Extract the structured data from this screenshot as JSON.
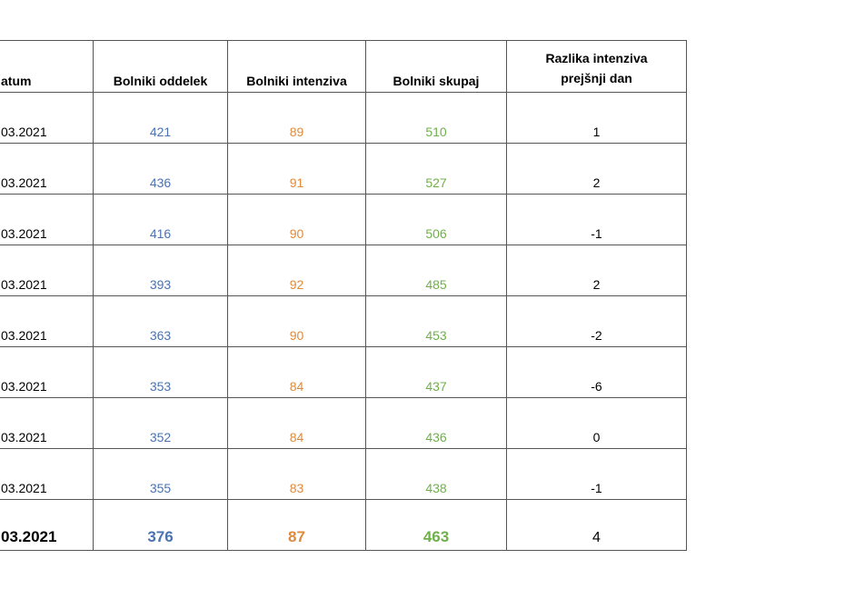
{
  "table": {
    "header": [
      "atum",
      "Bolniki oddelek",
      "Bolniki intenziva",
      "Bolniki skupaj",
      "Razlika intenziva prejšnji dan"
    ],
    "rows": [
      [
        "03.2021",
        421,
        89,
        510,
        1
      ],
      [
        "03.2021",
        436,
        91,
        527,
        2
      ],
      [
        "03.2021",
        416,
        90,
        506,
        -1
      ],
      [
        "03.2021",
        393,
        92,
        485,
        2
      ],
      [
        "03.2021",
        363,
        90,
        453,
        -2
      ],
      [
        "03.2021",
        353,
        84,
        437,
        -6
      ],
      [
        "03.2021",
        352,
        84,
        436,
        0
      ],
      [
        "03.2021",
        355,
        83,
        438,
        -1
      ],
      [
        "03.2021",
        376,
        87,
        463,
        4
      ]
    ]
  }
}
